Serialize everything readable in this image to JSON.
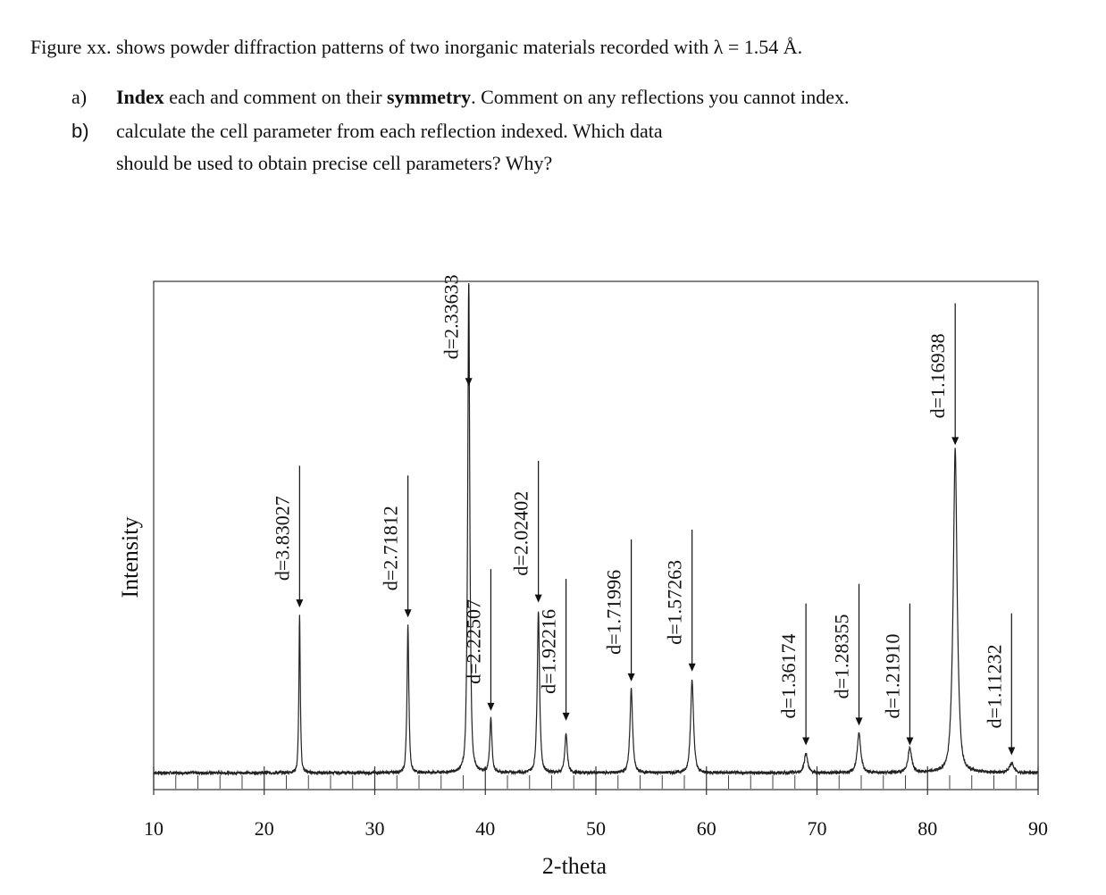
{
  "question": {
    "intro": "Figure xx. shows powder diffraction patterns of two inorganic materials recorded with λ = 1.54 Å.",
    "a_marker": "a)",
    "a_bold1": "Index",
    "a_text1": " each and comment on their ",
    "a_bold2": "symmetry",
    "a_text2": ". Comment on any reflections you cannot index.",
    "b_marker": "b)",
    "b_line1": "calculate the cell parameter from each reflection indexed. Which data",
    "b_line2": "should be used to obtain precise cell parameters? Why?"
  },
  "chart_data": {
    "type": "line",
    "title": "",
    "xlabel": "2-theta",
    "ylabel": "Intensity",
    "xlim": [
      10,
      90
    ],
    "ylim": [
      0,
      100
    ],
    "x_ticks": [
      10,
      20,
      30,
      40,
      50,
      60,
      70,
      80,
      90
    ],
    "minor_tick_step": 2,
    "grid": false,
    "peaks": [
      {
        "x": 23.2,
        "y": 32,
        "label": "d=3.83027",
        "marker_y": 33
      },
      {
        "x": 33.0,
        "y": 30,
        "label": "d=2.71812",
        "marker_y": 31
      },
      {
        "x": 38.5,
        "y": 100,
        "label": "d=2.33633",
        "marker_y": 78
      },
      {
        "x": 40.5,
        "y": 11,
        "label": "d=2.22507",
        "marker_y": 12
      },
      {
        "x": 44.8,
        "y": 33,
        "label": "d=2.02402",
        "marker_y": 34
      },
      {
        "x": 47.3,
        "y": 8,
        "label": "d=1.92216",
        "marker_y": 10
      },
      {
        "x": 53.2,
        "y": 17,
        "label": "d=1.71996",
        "marker_y": 18
      },
      {
        "x": 58.7,
        "y": 19,
        "label": "d=1.57263",
        "marker_y": 20
      },
      {
        "x": 69.0,
        "y": 4,
        "label": "d=1.36174",
        "marker_y": 5
      },
      {
        "x": 73.8,
        "y": 8,
        "label": "d=1.28355",
        "marker_y": 9
      },
      {
        "x": 78.4,
        "y": 5,
        "label": "d=1.21910",
        "marker_y": 5
      },
      {
        "x": 82.5,
        "y": 66,
        "label": "d=1.16938",
        "marker_y": 66
      },
      {
        "x": 87.6,
        "y": 2,
        "label": "d=1.11232",
        "marker_y": 3
      }
    ]
  }
}
